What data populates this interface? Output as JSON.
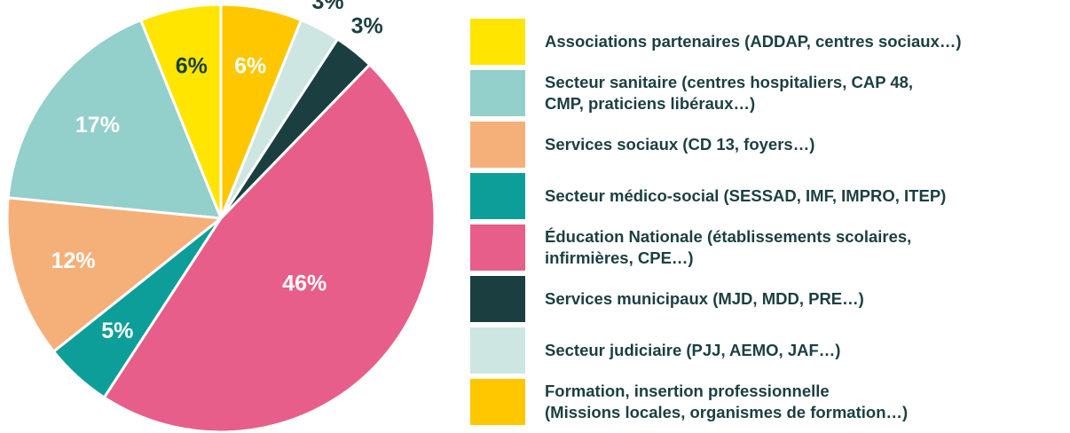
{
  "chart_data": {
    "type": "pie",
    "start_angle": 90,
    "counterclockwise": true,
    "series": [
      {
        "name": "Associations partenaires (ADDAP, centres sociaux…)",
        "color": "#FFE500",
        "label_color": "#1B3F40",
        "values": [
          6
        ],
        "value_labels": [
          "6%"
        ]
      },
      {
        "name": "Secteur sanitaire (centres hospitaliers, CAP 48,\nCMP, praticiens libéraux…)",
        "color": "#93CFCB",
        "label_color": "#FFFFFF",
        "values": [
          17
        ],
        "value_labels": [
          "17%"
        ]
      },
      {
        "name": "Services sociaux (CD 13, foyers…)",
        "color": "#F5B07A",
        "label_color": "#FFFFFF",
        "values": [
          12
        ],
        "value_labels": [
          "12%"
        ]
      },
      {
        "name": "Secteur médico-social (SESSAD, IMF, IMPRO, ITEP)",
        "color": "#0E9E9A",
        "label_color": "#FFFFFF",
        "values": [
          5
        ],
        "value_labels": [
          "5%"
        ]
      },
      {
        "name": "Éducation Nationale (établissements scolaires,\ninfirmières, CPE…)",
        "color": "#E75E8A",
        "label_color": "#FFFFFF",
        "values": [
          46
        ],
        "value_labels": [
          "46%"
        ]
      },
      {
        "name": "Services municipaux (MJD, MDD, PRE…)",
        "color": "#1B3F40",
        "label_color": "#1B3F40",
        "values": [
          3
        ],
        "value_labels": [
          "3%"
        ]
      },
      {
        "name": "Secteur judiciaire (PJJ, AEMO, JAF…)",
        "color": "#CDE6E1",
        "label_color": "#1B3F40",
        "values": [
          3
        ],
        "value_labels": [
          "3%"
        ]
      },
      {
        "name": "Formation, insertion professionnelle\n(Missions locales, organismes de formation…)",
        "color": "#FFC700",
        "label_color": "#FFFFFF",
        "values": [
          6
        ],
        "value_labels": [
          "6%"
        ]
      }
    ]
  }
}
